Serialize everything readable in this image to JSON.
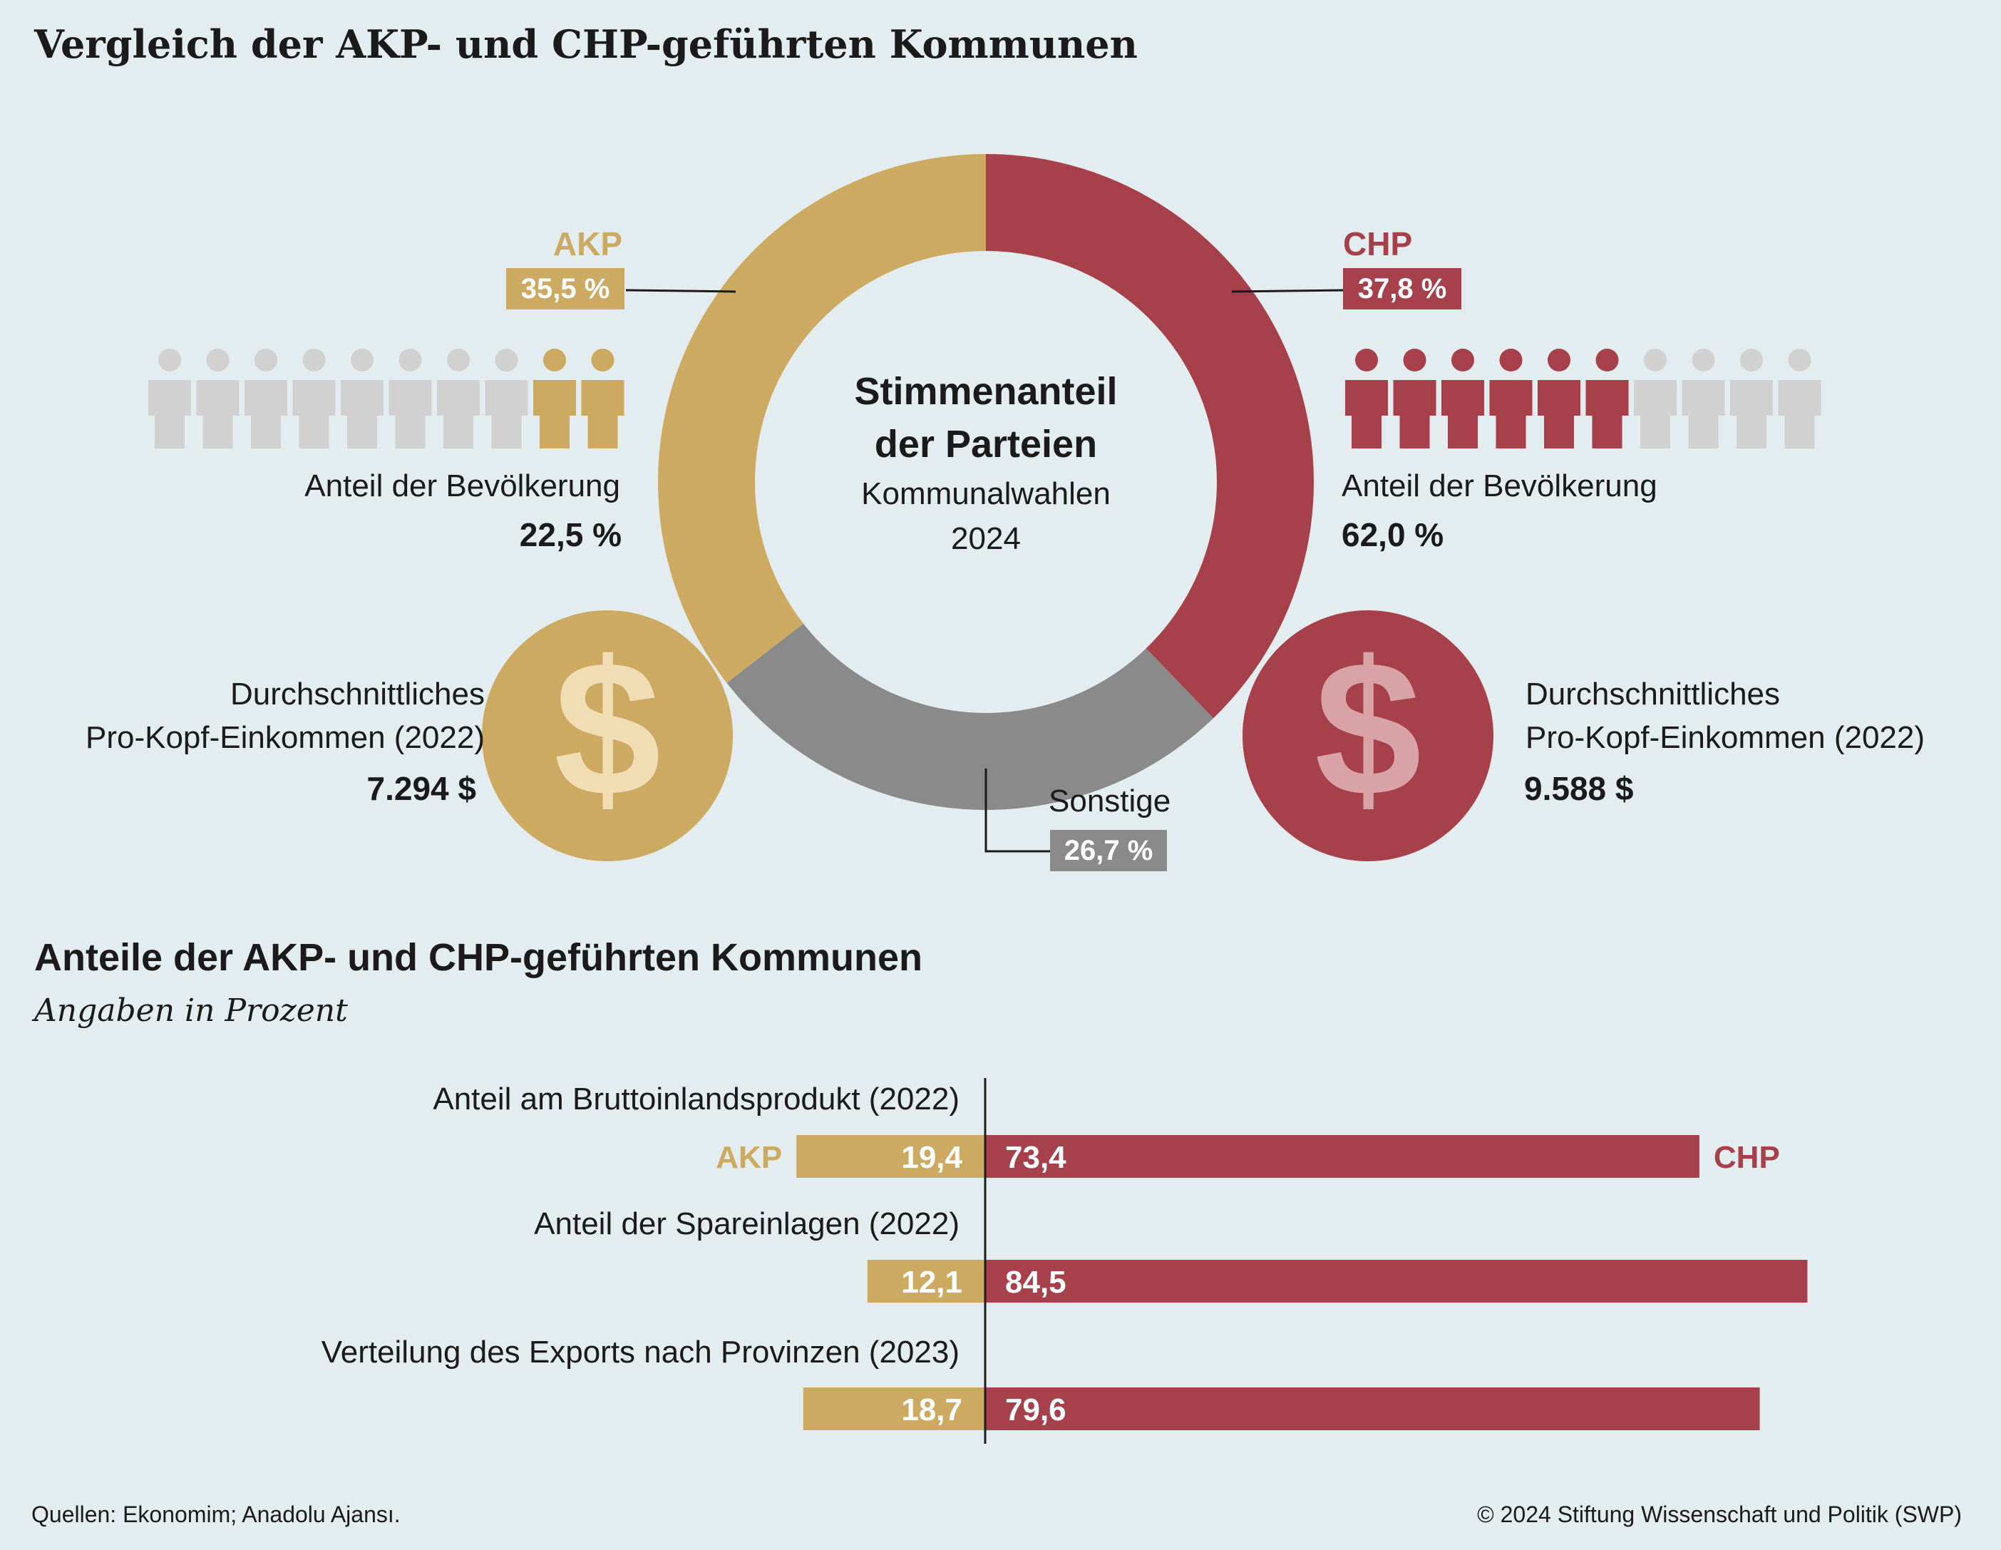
{
  "title": "Vergleich der AKP- und CHP-geführten Kommunen",
  "colors": {
    "akp": "#cdaa62",
    "chp": "#a6404a",
    "other": "#8a8a8a",
    "person_grey": "#d1d1d1",
    "background": "#e3ecee"
  },
  "donut": {
    "center_title_line1": "Stimmenanteil",
    "center_title_line2": "der Parteien",
    "center_sub_line1": "Kommunalwahlen",
    "center_sub_line2": "2024"
  },
  "akp": {
    "name": "AKP",
    "vote_label": "35,5 %",
    "population_label": "Anteil der Bevölkerung",
    "population_value": "22,5 %",
    "income_label_line1": "Durchschnittliches",
    "income_label_line2": "Pro-Kopf-Einkommen (2022)",
    "income_value": "7.294 $",
    "dollar_icon": "dollar-coin-icon"
  },
  "chp": {
    "name": "CHP",
    "vote_label": "37,8 %",
    "population_label": "Anteil der Bevölkerung",
    "population_value": "62,0 %",
    "income_label_line1": "Durchschnittliches",
    "income_label_line2": "Pro-Kopf-Einkommen (2022)",
    "income_value": "9.588 $",
    "dollar_icon": "dollar-coin-icon"
  },
  "other": {
    "name": "Sonstige",
    "vote_label": "26,7 %"
  },
  "bar_section": {
    "title": "Anteile der AKP- und CHP-geführten Kommunen",
    "subtitle": "Angaben in Prozent",
    "akp_label": "AKP",
    "chp_label": "CHP"
  },
  "chart_data": [
    {
      "type": "pie",
      "categories": [
        "AKP",
        "CHP",
        "Sonstige"
      ],
      "values": [
        35.5,
        37.8,
        26.7
      ],
      "title": "Stimmenanteil der Parteien",
      "subtitle": "Kommunalwahlen 2024"
    },
    {
      "type": "bar",
      "categories": [
        "Anteil am Bruttoinlandsprodukt (2022)",
        "Anteil der Spareinlagen (2022)",
        "Verteilung des Exports nach Provinzen (2023)"
      ],
      "series": [
        {
          "name": "AKP",
          "values": [
            19.4,
            12.1,
            18.7
          ],
          "labels": [
            "19,4",
            "12,1",
            "18,7"
          ]
        },
        {
          "name": "CHP",
          "values": [
            73.4,
            84.5,
            79.6
          ],
          "labels": [
            "73,4",
            "84,5",
            "79,6"
          ]
        }
      ],
      "title": "Anteile der AKP- und CHP-geführten Kommunen",
      "subtitle": "Angaben in Prozent"
    }
  ],
  "population_share": {
    "akp": 22.5,
    "chp": 62.0
  },
  "footer": {
    "source": "Quellen: Ekonomim; Anadolu Ajansı.",
    "copyright": "© 2024 Stiftung Wissenschaft und Politik (SWP)"
  }
}
